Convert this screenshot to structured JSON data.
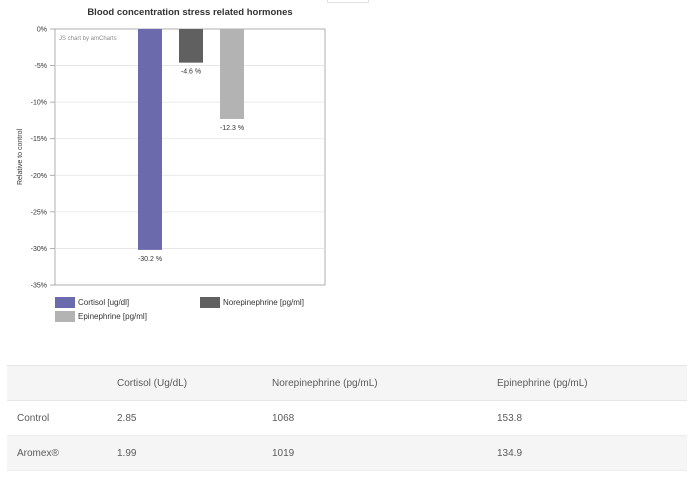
{
  "chart_data": {
    "type": "bar",
    "title": "Blood concentration stress related hormones",
    "ylabel": "Relative to control",
    "xlabel": "",
    "ylim": [
      -35,
      0
    ],
    "yticks": [
      "0%",
      "-5%",
      "-10%",
      "-15%",
      "-20%",
      "-25%",
      "-30%",
      "-35%"
    ],
    "grid": true,
    "legend_position": "bottom",
    "watermark": "JS chart by amCharts",
    "series": [
      {
        "name": "Cortisol [ug/dl]",
        "value": -30.2,
        "label": "-30.2 %",
        "color": "#6b6aac"
      },
      {
        "name": "Norepinephrine [pg/ml]",
        "value": -4.6,
        "label": "-4.6 %",
        "color": "#606060"
      },
      {
        "name": "Epinephrine [pg/ml]",
        "value": -12.3,
        "label": "-12.3 %",
        "color": "#b3b3b3"
      }
    ]
  },
  "table": {
    "headers": [
      "",
      "Cortisol (Ug/dL)",
      "Norepinephrine (pg/mL)",
      "Epinephrine (pg/mL)"
    ],
    "rows": [
      [
        "Control",
        "2.85",
        "1068",
        "153.8"
      ],
      [
        "Aromex®",
        "1.99",
        "1019",
        "134.9"
      ]
    ]
  }
}
